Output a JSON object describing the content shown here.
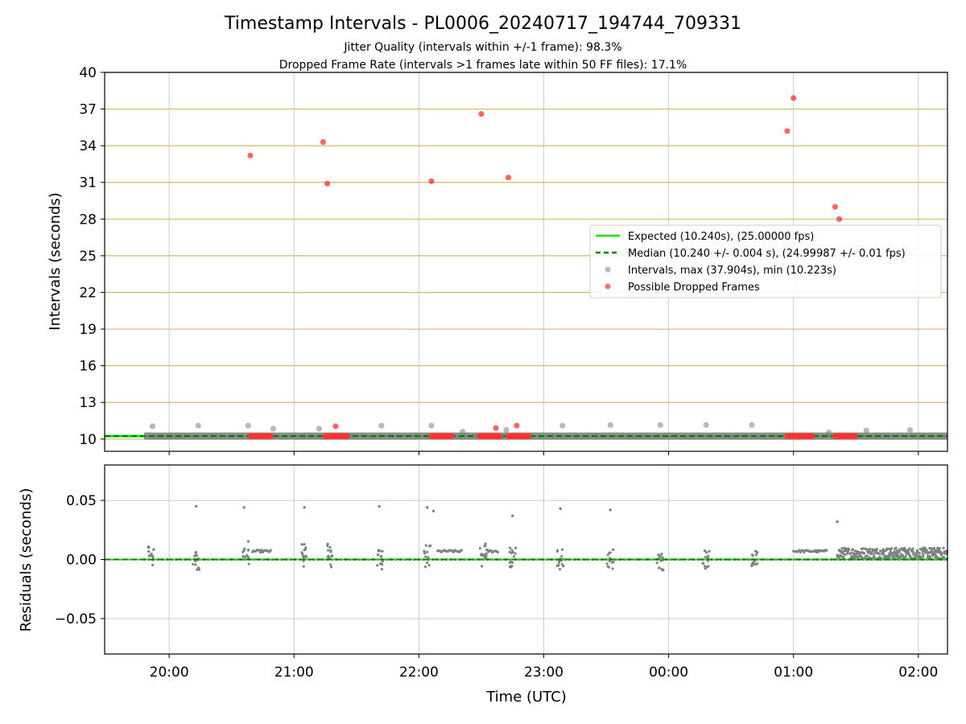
{
  "title": "Timestamp Intervals - PL0006_20240717_194744_709331",
  "subtitle1": "Jitter Quality (intervals within +/-1 frame): 98.3%",
  "subtitle2": "Dropped Frame Rate (intervals >1 frames late within 50 FF files): 17.1%",
  "colors": {
    "expected": "#00e600",
    "median": "#008000",
    "intervals": "#808080",
    "dropped": "#ff3333",
    "frame_lines": "#d4b96a",
    "grid": "#cccccc"
  },
  "chart_data": [
    {
      "type": "scatter",
      "xlabel": "",
      "ylabel": "Intervals (seconds)",
      "ylim": [
        9,
        40
      ],
      "yticks": [
        "10",
        "13",
        "16",
        "19",
        "22",
        "25",
        "28",
        "31",
        "34",
        "37",
        "40"
      ],
      "xlim": [
        "19:29",
        "02:14"
      ],
      "grid": "vertical",
      "frame_lines": [
        10,
        13,
        16,
        19,
        22,
        25,
        28,
        31,
        34,
        37,
        40
      ],
      "legend_position": "center-right",
      "expected_interval": 10.24,
      "median_interval": 10.24,
      "series": [
        {
          "name": "Expected (10.240s), (25.00000 fps)",
          "kind": "line",
          "style": "solid",
          "y": 10.24
        },
        {
          "name": "Median (10.240 +/- 0.004 s), (24.99987 +/- 0.01 fps)",
          "kind": "line",
          "style": "dashed",
          "y": 10.24
        },
        {
          "name": "Intervals, max (37.904s), min (10.223s)",
          "kind": "scatter",
          "baseline": {
            "x_start": "19:48",
            "x_end": "02:14",
            "y": 10.24
          },
          "points": [
            {
              "x": "19:52",
              "y": 11.05
            },
            {
              "x": "20:14",
              "y": 11.1
            },
            {
              "x": "20:38",
              "y": 11.1
            },
            {
              "x": "20:50",
              "y": 10.85
            },
            {
              "x": "21:12",
              "y": 10.85
            },
            {
              "x": "21:42",
              "y": 11.1
            },
            {
              "x": "22:06",
              "y": 11.1
            },
            {
              "x": "22:21",
              "y": 10.6
            },
            {
              "x": "22:42",
              "y": 10.75
            },
            {
              "x": "23:09",
              "y": 11.1
            },
            {
              "x": "23:32",
              "y": 11.15
            },
            {
              "x": "23:56",
              "y": 11.15
            },
            {
              "x": "00:18",
              "y": 11.15
            },
            {
              "x": "00:40",
              "y": 11.15
            },
            {
              "x": "01:17",
              "y": 10.55
            },
            {
              "x": "01:35",
              "y": 10.7
            },
            {
              "x": "01:56",
              "y": 10.75
            }
          ]
        },
        {
          "name": "Possible Dropped Frames",
          "kind": "scatter",
          "points": [
            {
              "x": "20:39",
              "y": 33.2
            },
            {
              "x": "21:14",
              "y": 34.3
            },
            {
              "x": "21:16",
              "y": 30.9
            },
            {
              "x": "21:20",
              "y": 11.05
            },
            {
              "x": "22:06",
              "y": 31.1
            },
            {
              "x": "22:30",
              "y": 36.6
            },
            {
              "x": "22:37",
              "y": 10.9
            },
            {
              "x": "22:43",
              "y": 31.4
            },
            {
              "x": "22:47",
              "y": 11.1
            },
            {
              "x": "00:57",
              "y": 35.2
            },
            {
              "x": "01:00",
              "y": 37.9
            },
            {
              "x": "01:20",
              "y": 29.0
            },
            {
              "x": "01:22",
              "y": 28.0
            }
          ],
          "baseline_clusters": [
            {
              "x_start": "20:39",
              "x_end": "20:49",
              "y": 10.24
            },
            {
              "x_start": "21:15",
              "x_end": "21:26",
              "y": 10.24
            },
            {
              "x_start": "22:06",
              "x_end": "22:16",
              "y": 10.24
            },
            {
              "x_start": "22:29",
              "x_end": "22:39",
              "y": 10.24
            },
            {
              "x_start": "22:43",
              "x_end": "22:53",
              "y": 10.24
            },
            {
              "x_start": "00:57",
              "x_end": "01:09",
              "y": 10.24
            },
            {
              "x_start": "01:20",
              "x_end": "01:30",
              "y": 10.24
            }
          ]
        }
      ]
    },
    {
      "type": "scatter",
      "xlabel": "Time (UTC)",
      "ylabel": "Residuals (seconds)",
      "ylim": [
        -0.08,
        0.08
      ],
      "yticks": [
        {
          "v": -0.05,
          "label": "−0.05"
        },
        {
          "v": 0.0,
          "label": "0.00"
        },
        {
          "v": 0.05,
          "label": "0.05"
        }
      ],
      "xlim": [
        "19:29",
        "02:14"
      ],
      "xticks": [
        "20:00",
        "21:00",
        "22:00",
        "23:00",
        "00:00",
        "01:00",
        "02:00"
      ],
      "grid": "both",
      "reference_line": 0.0,
      "outliers": [
        {
          "x": "20:13",
          "y": 0.045
        },
        {
          "x": "20:36",
          "y": 0.044
        },
        {
          "x": "21:05",
          "y": 0.044
        },
        {
          "x": "21:41",
          "y": 0.045
        },
        {
          "x": "22:04",
          "y": 0.044
        },
        {
          "x": "22:07",
          "y": 0.041
        },
        {
          "x": "22:45",
          "y": 0.037
        },
        {
          "x": "23:08",
          "y": 0.043
        },
        {
          "x": "23:32",
          "y": 0.042
        },
        {
          "x": "01:21",
          "y": 0.032
        }
      ],
      "bursts": [
        {
          "x": "19:51",
          "level": 0.008
        },
        {
          "x": "20:13",
          "level": 0.0
        },
        {
          "x": "20:37",
          "level": 0.008
        },
        {
          "x": "21:05",
          "level": 0.008
        },
        {
          "x": "21:17",
          "level": 0.008
        },
        {
          "x": "21:41",
          "level": 0.0
        },
        {
          "x": "22:04",
          "level": 0.008
        },
        {
          "x": "22:31",
          "level": 0.008
        },
        {
          "x": "22:45",
          "level": 0.006
        },
        {
          "x": "23:08",
          "level": 0.0
        },
        {
          "x": "23:32",
          "level": 0.0
        },
        {
          "x": "23:56",
          "level": 0.0
        },
        {
          "x": "00:18",
          "level": 0.0
        },
        {
          "x": "00:41",
          "level": 0.0
        }
      ],
      "plateaus": [
        {
          "x_start": "20:40",
          "x_end": "20:49",
          "y": 0.007
        },
        {
          "x_start": "22:09",
          "x_end": "22:21",
          "y": 0.007
        },
        {
          "x_start": "22:33",
          "x_end": "22:38",
          "y": 0.007
        },
        {
          "x_start": "01:00",
          "x_end": "01:16",
          "y": 0.007
        }
      ],
      "dense_band": {
        "x_start": "01:21",
        "x_end": "02:14",
        "y_low": 0.0,
        "y_high": 0.01
      }
    }
  ]
}
